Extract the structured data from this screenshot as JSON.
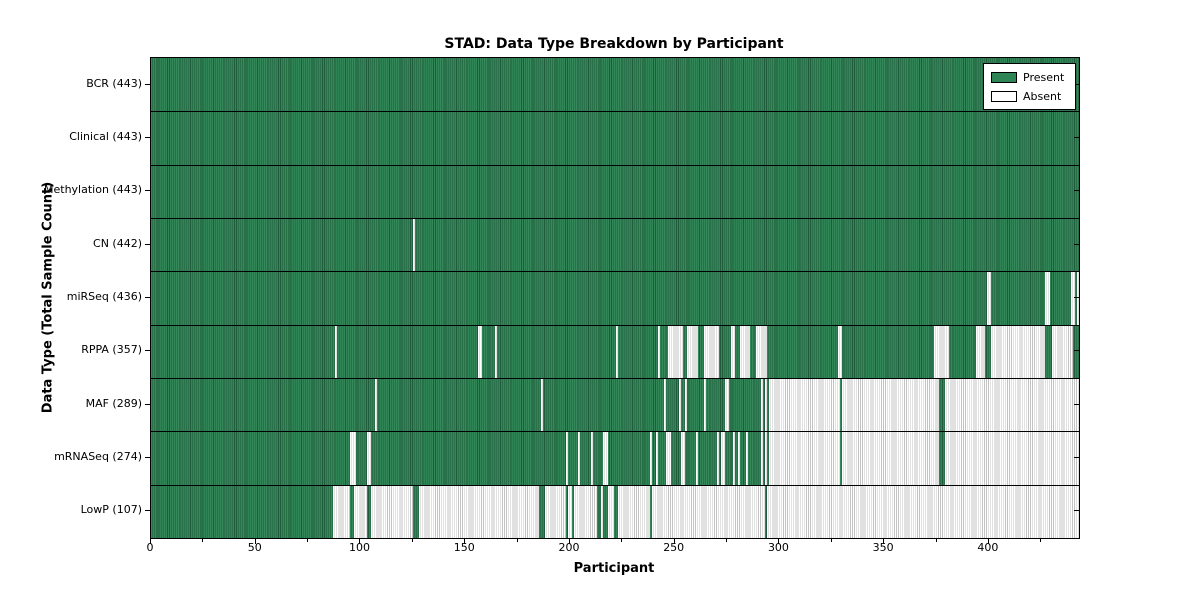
{
  "figure": {
    "title": "STAD: Data Type Breakdown by Participant",
    "xlabel": "Participant",
    "ylabel": "Data Type (Total Sample Count)"
  },
  "legend": {
    "present_label": "Present",
    "absent_label": "Absent"
  },
  "colors": {
    "present_fill": "#2f8456",
    "present_edge": "#1f5c3b",
    "absent_fill": "#ffffff",
    "absent_edge": "#c3c3c3",
    "frame": "#000000"
  },
  "chart_data": {
    "type": "heatmap",
    "title": "STAD: Data Type Breakdown by Participant",
    "xlabel": "Participant",
    "ylabel": "Data Type (Total Sample Count)",
    "x_ticks": [
      0,
      50,
      100,
      150,
      200,
      250,
      300,
      350,
      400
    ],
    "x_minor_ticks": [
      25,
      75,
      125,
      175,
      225,
      275,
      325,
      375,
      425
    ],
    "xlim": [
      0,
      443
    ],
    "n_participants": 443,
    "grid": false,
    "legend_position": "upper right",
    "legend": [
      {
        "label": "Present",
        "color": "#2f8456"
      },
      {
        "label": "Absent",
        "color": "#ffffff"
      }
    ],
    "rows": [
      {
        "label": "BCR (443)",
        "present_count": 443,
        "absent_ranges": []
      },
      {
        "label": "Clinical (443)",
        "present_count": 443,
        "absent_ranges": []
      },
      {
        "label": "Methylation (443)",
        "present_count": 443,
        "absent_ranges": []
      },
      {
        "label": "CN (442)",
        "present_count": 442,
        "absent_ranges": [
          [
            125,
            126
          ]
        ]
      },
      {
        "label": "miRSeq (436)",
        "present_count": 436,
        "absent_ranges": [
          [
            399,
            401
          ],
          [
            427,
            429
          ],
          [
            439,
            441
          ],
          [
            442,
            443
          ]
        ]
      },
      {
        "label": "RPPA (357)",
        "present_count": 357,
        "absent_ranges": [
          [
            88,
            89
          ],
          [
            156,
            158
          ],
          [
            164,
            165
          ],
          [
            222,
            223
          ],
          [
            242,
            243
          ],
          [
            247,
            254
          ],
          [
            256,
            261
          ],
          [
            264,
            271
          ],
          [
            277,
            279
          ],
          [
            281,
            286
          ],
          [
            289,
            294
          ],
          [
            328,
            330
          ],
          [
            374,
            381
          ],
          [
            394,
            398
          ],
          [
            401,
            427
          ],
          [
            430,
            440
          ]
        ]
      },
      {
        "label": "MAF (289)",
        "present_count": 289,
        "absent_ranges": [
          [
            107,
            108
          ],
          [
            186,
            187
          ],
          [
            245,
            246
          ],
          [
            252,
            253
          ],
          [
            255,
            256
          ],
          [
            264,
            265
          ],
          [
            274,
            276
          ],
          [
            291,
            292
          ],
          [
            293,
            294
          ],
          [
            295,
            329
          ],
          [
            330,
            376
          ],
          [
            379,
            443
          ]
        ]
      },
      {
        "label": "mRNASeq (274)",
        "present_count": 274,
        "absent_ranges": [
          [
            95,
            98
          ],
          [
            103,
            105
          ],
          [
            198,
            199
          ],
          [
            204,
            205
          ],
          [
            210,
            211
          ],
          [
            216,
            218
          ],
          [
            238,
            239
          ],
          [
            241,
            242
          ],
          [
            246,
            248
          ],
          [
            253,
            255
          ],
          [
            260,
            261
          ],
          [
            270,
            271
          ],
          [
            272,
            274
          ],
          [
            278,
            279
          ],
          [
            280,
            281
          ],
          [
            284,
            285
          ],
          [
            291,
            292
          ],
          [
            293,
            294
          ],
          [
            295,
            329
          ],
          [
            330,
            376
          ],
          [
            379,
            443
          ]
        ]
      },
      {
        "label": "LowP (107)",
        "present_count": 107,
        "absent_ranges": [
          [
            87,
            95
          ],
          [
            97,
            103
          ],
          [
            105,
            125
          ],
          [
            128,
            185
          ],
          [
            188,
            198
          ],
          [
            199,
            201
          ],
          [
            202,
            213
          ],
          [
            215,
            216
          ],
          [
            218,
            221
          ],
          [
            223,
            238
          ],
          [
            239,
            293
          ],
          [
            294,
            443
          ]
        ]
      }
    ]
  }
}
